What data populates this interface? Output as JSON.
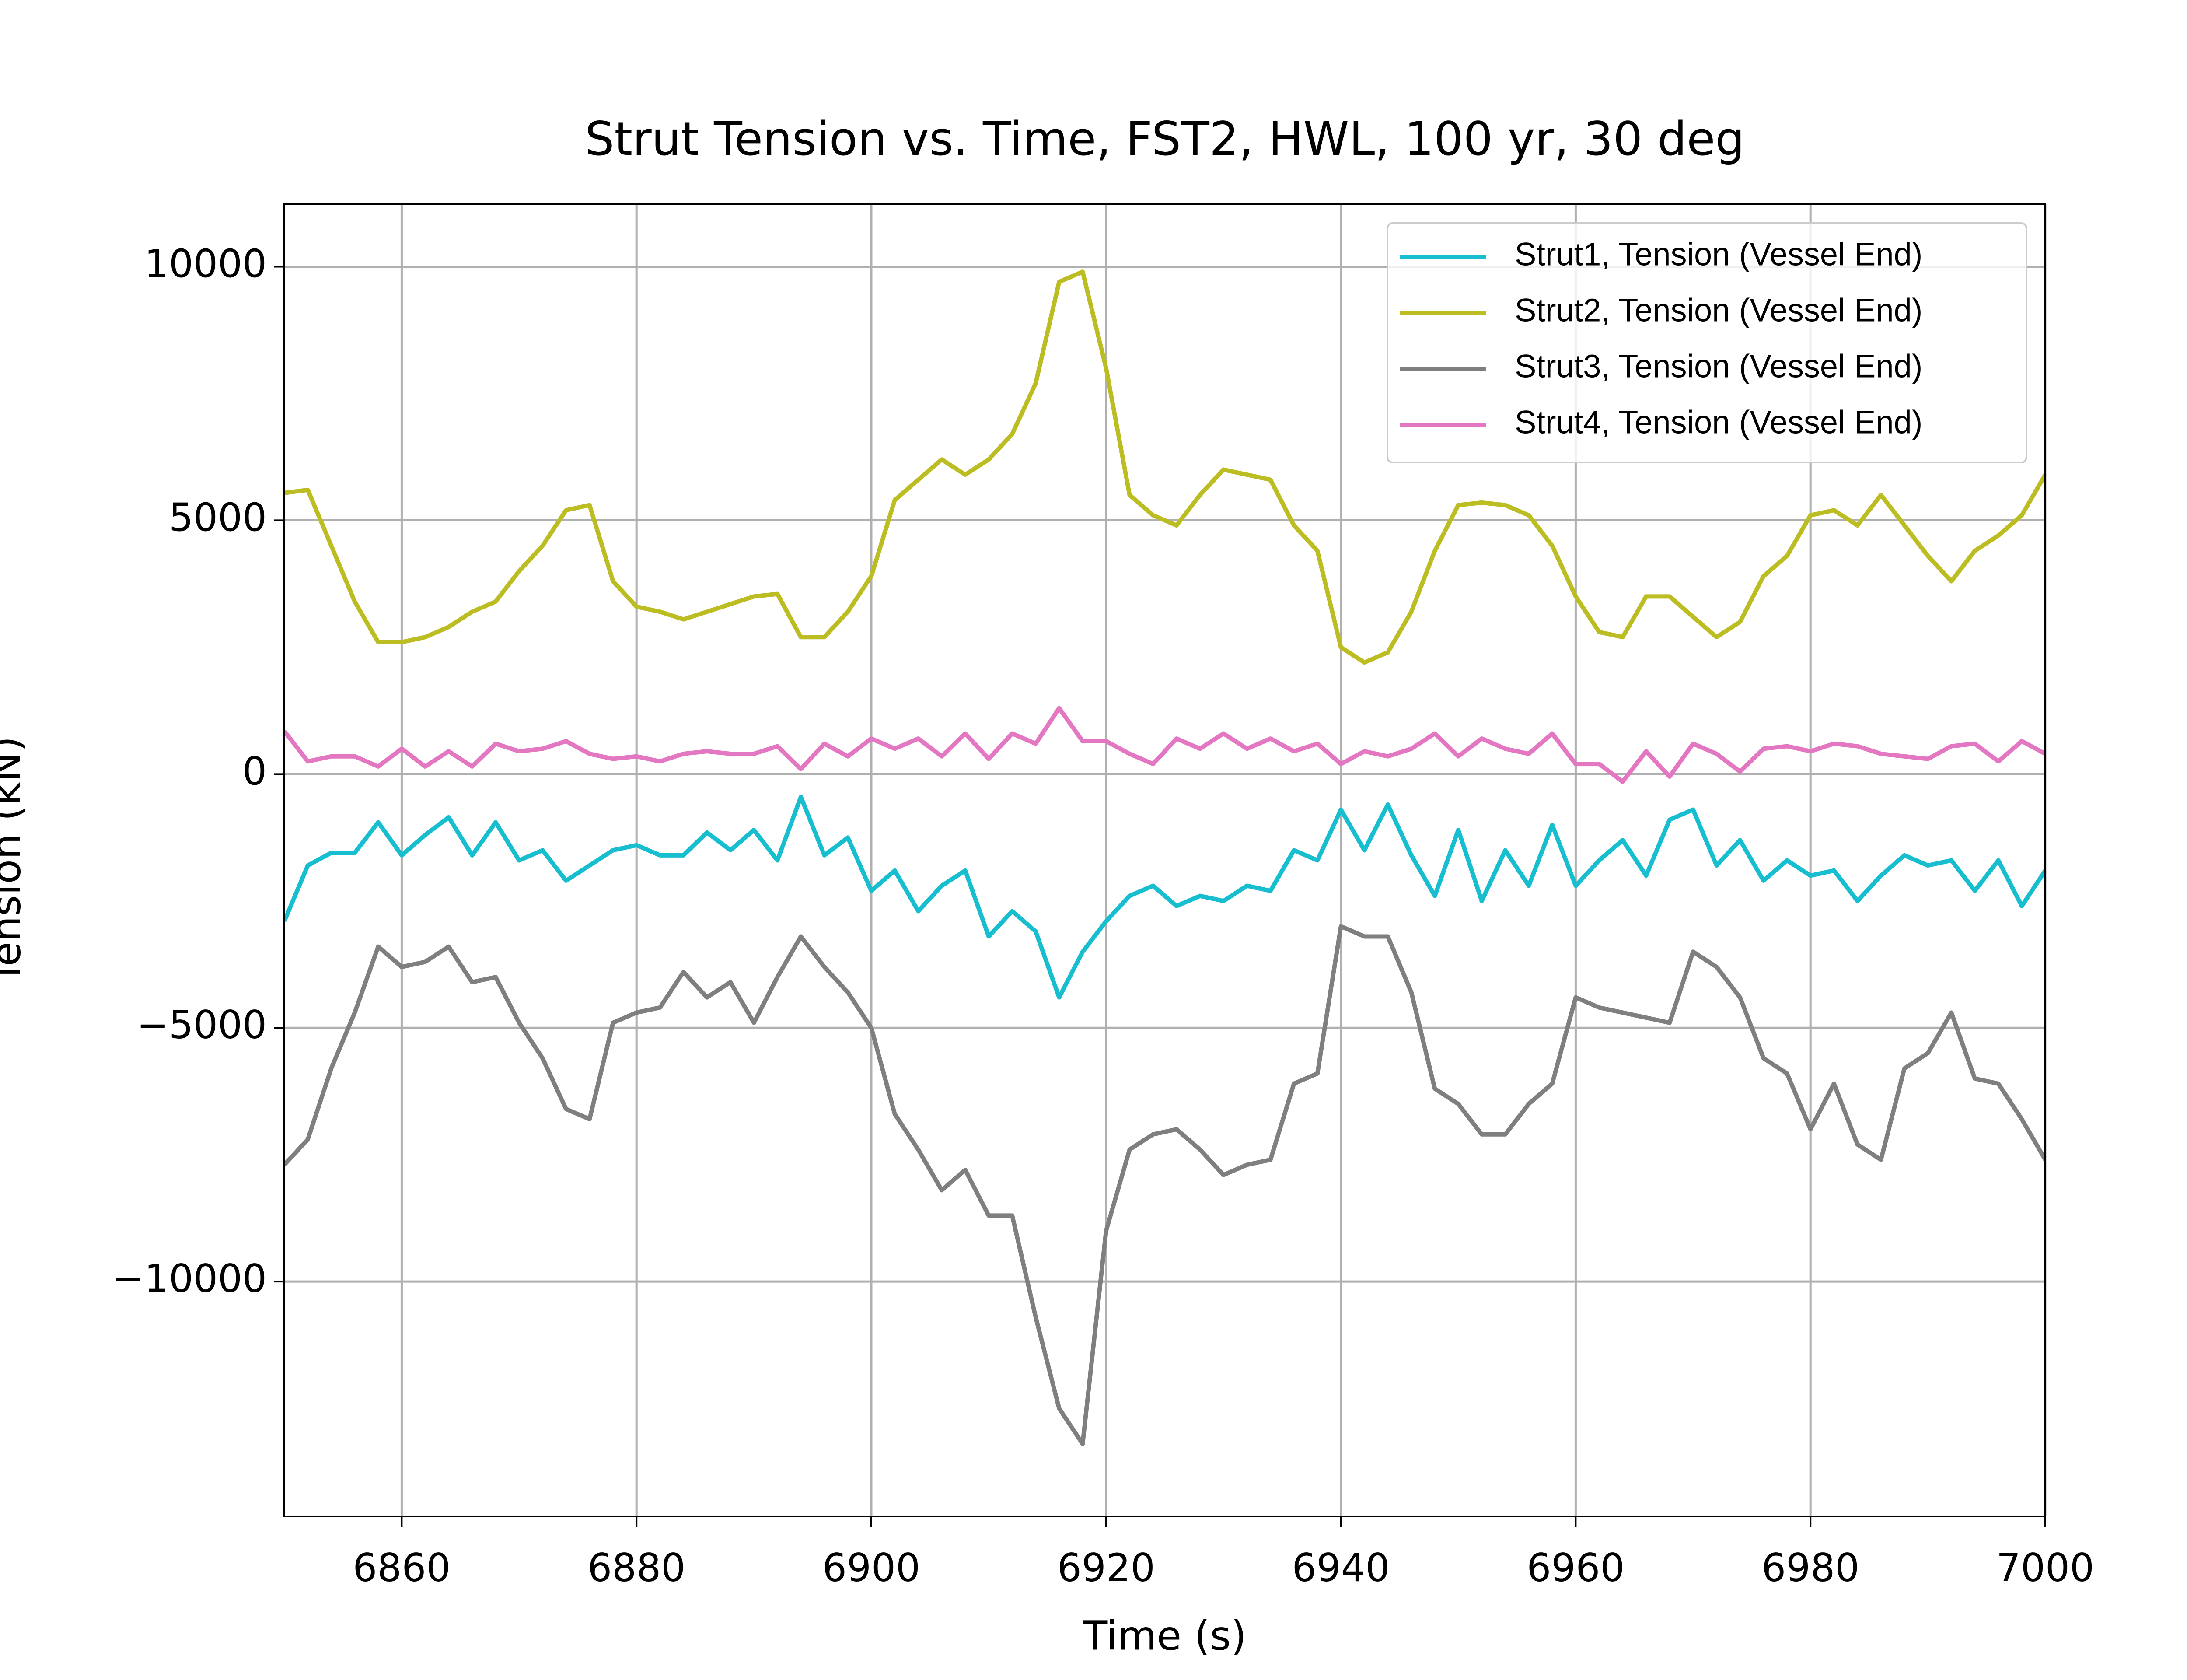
{
  "chart_data": {
    "type": "line",
    "title": "Strut Tension vs. Time, FST2, HWL, 100 yr, 30 deg",
    "xlabel": "Time (s)",
    "ylabel": "Tension (kN)",
    "x": [
      6850,
      6852,
      6854,
      6856,
      6858,
      6860,
      6862,
      6864,
      6866,
      6868,
      6870,
      6872,
      6874,
      6876,
      6878,
      6880,
      6882,
      6884,
      6886,
      6888,
      6890,
      6892,
      6894,
      6896,
      6898,
      6900,
      6902,
      6904,
      6906,
      6908,
      6910,
      6912,
      6914,
      6916,
      6918,
      6920,
      6922,
      6924,
      6926,
      6928,
      6930,
      6932,
      6934,
      6936,
      6938,
      6940,
      6942,
      6944,
      6946,
      6948,
      6950,
      6952,
      6954,
      6956,
      6958,
      6960,
      6962,
      6964,
      6966,
      6968,
      6970,
      6972,
      6974,
      6976,
      6978,
      6980,
      6982,
      6984,
      6986,
      6988,
      6990,
      6992,
      6994,
      6996,
      6998,
      7000
    ],
    "series": [
      {
        "name": "Strut1, Tension (Vessel End)",
        "color": "#17becf",
        "values": [
          -2900,
          -1800,
          -1550,
          -1550,
          -950,
          -1600,
          -1200,
          -850,
          -1600,
          -950,
          -1700,
          -1500,
          -2100,
          -1800,
          -1500,
          -1400,
          -1600,
          -1600,
          -1150,
          -1500,
          -1100,
          -1700,
          -450,
          -1600,
          -1250,
          -2300,
          -1900,
          -2700,
          -2200,
          -1900,
          -3200,
          -2700,
          -3100,
          -4400,
          -3500,
          -2900,
          -2400,
          -2200,
          -2600,
          -2400,
          -2500,
          -2200,
          -2300,
          -1500,
          -1700,
          -700,
          -1500,
          -600,
          -1600,
          -2400,
          -1100,
          -2500,
          -1500,
          -2200,
          -1000,
          -2200,
          -1700,
          -1300,
          -2000,
          -900,
          -700,
          -1800,
          -1300,
          -2100,
          -1700,
          -2000,
          -1900,
          -2500,
          -2000,
          -1600,
          -1800,
          -1700,
          -2300,
          -1700,
          -2600,
          -1900
        ]
      },
      {
        "name": "Strut2, Tension (Vessel End)",
        "color": "#bcbd22",
        "values": [
          5540,
          5600,
          4500,
          3400,
          2600,
          2600,
          2700,
          2900,
          3200,
          3400,
          4000,
          4500,
          5200,
          5300,
          3800,
          3300,
          3200,
          3050,
          3200,
          3350,
          3500,
          3550,
          2700,
          2700,
          3200,
          3900,
          5400,
          5800,
          6200,
          5900,
          6200,
          6700,
          7700,
          9700,
          9900,
          8000,
          5500,
          5100,
          4900,
          5500,
          6000,
          5900,
          5800,
          4900,
          4400,
          2500,
          2200,
          2400,
          3200,
          4400,
          5300,
          5350,
          5300,
          5100,
          4500,
          3500,
          2800,
          2700,
          3500,
          3500,
          3100,
          2700,
          3000,
          3900,
          4300,
          5100,
          5200,
          4900,
          5500,
          4900,
          4300,
          3800,
          4400,
          4700,
          5100,
          5900
        ]
      },
      {
        "name": "Strut3, Tension (Vessel End)",
        "color": "#7f7f7f",
        "values": [
          -7700,
          -7200,
          -5800,
          -4700,
          -3400,
          -3800,
          -3700,
          -3400,
          -4100,
          -4000,
          -4900,
          -5600,
          -6600,
          -6800,
          -4900,
          -4700,
          -4600,
          -3900,
          -4400,
          -4100,
          -4900,
          -4000,
          -3200,
          -3800,
          -4300,
          -5000,
          -6700,
          -7400,
          -8200,
          -7800,
          -8700,
          -8700,
          -10700,
          -12500,
          -13200,
          -9000,
          -7400,
          -7100,
          -7000,
          -7400,
          -7900,
          -7700,
          -7600,
          -6100,
          -5900,
          -3000,
          -3200,
          -3200,
          -4300,
          -6200,
          -6500,
          -7100,
          -7100,
          -6500,
          -6100,
          -4400,
          -4600,
          -4700,
          -4800,
          -4900,
          -3500,
          -3800,
          -4400,
          -5600,
          -5900,
          -7000,
          -6100,
          -7300,
          -7600,
          -5800,
          -5500,
          -4700,
          -6000,
          -6100,
          -6800,
          -7600
        ]
      },
      {
        "name": "Strut4, Tension (Vessel End)",
        "color": "#e377c2",
        "values": [
          850,
          250,
          350,
          350,
          150,
          500,
          150,
          450,
          150,
          600,
          450,
          500,
          650,
          400,
          300,
          350,
          250,
          400,
          450,
          400,
          400,
          550,
          100,
          600,
          350,
          700,
          500,
          700,
          350,
          800,
          300,
          800,
          600,
          1300,
          650,
          650,
          400,
          200,
          700,
          500,
          800,
          500,
          700,
          450,
          600,
          200,
          450,
          350,
          500,
          800,
          350,
          700,
          500,
          400,
          800,
          200,
          200,
          -150,
          450,
          -50,
          600,
          400,
          50,
          500,
          550,
          450,
          600,
          550,
          400,
          350,
          300,
          550,
          600,
          250,
          650,
          400
        ]
      }
    ],
    "xlim": [
      6850,
      7000
    ],
    "xticks": [
      6860,
      6880,
      6900,
      6920,
      6940,
      6960,
      6980,
      7000
    ],
    "ylim": [
      -14629,
      11229
    ],
    "yticks": [
      {
        "value": -10000,
        "label": "−10000"
      },
      {
        "value": -5000,
        "label": "−5000"
      },
      0,
      5000,
      10000
    ],
    "grid": true,
    "legend": "upper right"
  }
}
